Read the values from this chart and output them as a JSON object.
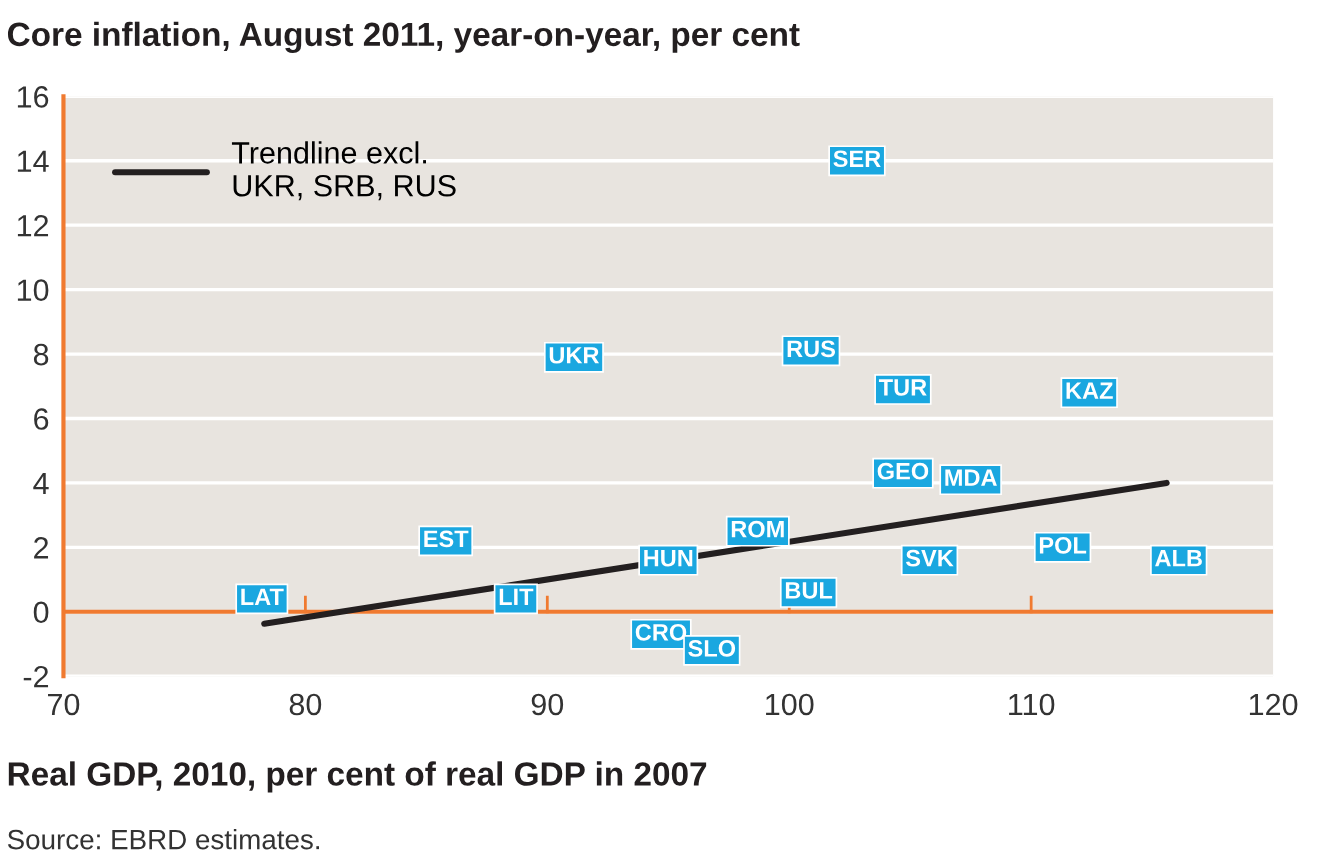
{
  "chart_data": {
    "type": "scatter",
    "title": "Core inflation, August 2011, year-on-year, per cent",
    "xlabel": "Real GDP, 2010, per cent of real GDP in 2007",
    "xlim": [
      70,
      120
    ],
    "xticks": [
      70,
      80,
      90,
      100,
      110,
      120
    ],
    "ylim": [
      -2,
      16
    ],
    "yticks": [
      -2,
      0,
      2,
      4,
      6,
      8,
      10,
      12,
      14,
      16
    ],
    "grid": "y",
    "legend": "top left",
    "ref_lines": [
      {
        "axis": "y",
        "value": 0,
        "color": "#f07a30"
      }
    ],
    "series": [
      {
        "type": "line",
        "name": "Trendline excl.\nUKR, SRB, RUS",
        "color": "#231f20",
        "x": [
          78.3,
          115.6
        ],
        "values": [
          -0.37,
          4.0
        ]
      }
    ],
    "annotations": [
      {
        "text": "LAT",
        "x": 78.2,
        "y": 0.4
      },
      {
        "text": "EST",
        "x": 85.8,
        "y": 2.2
      },
      {
        "text": "UKR",
        "x": 91.1,
        "y": 7.9
      },
      {
        "text": "LIT",
        "x": 88.7,
        "y": 0.4
      },
      {
        "text": "HUN",
        "x": 95.0,
        "y": 1.6
      },
      {
        "text": "CRO",
        "x": 94.7,
        "y": -0.7
      },
      {
        "text": "SLO",
        "x": 96.8,
        "y": -1.2
      },
      {
        "text": "ROM",
        "x": 98.7,
        "y": 2.5
      },
      {
        "text": "BUL",
        "x": 100.8,
        "y": 0.6
      },
      {
        "text": "RUS",
        "x": 100.9,
        "y": 8.1
      },
      {
        "text": "SER",
        "x": 102.8,
        "y": 14.0
      },
      {
        "text": "TUR",
        "x": 104.7,
        "y": 6.9
      },
      {
        "text": "GEO",
        "x": 104.7,
        "y": 4.3
      },
      {
        "text": "MDA",
        "x": 107.5,
        "y": 4.1
      },
      {
        "text": "SVK",
        "x": 105.8,
        "y": 1.6
      },
      {
        "text": "POL",
        "x": 111.3,
        "y": 2.0
      },
      {
        "text": "KAZ",
        "x": 112.4,
        "y": 6.8
      },
      {
        "text": "ALB",
        "x": 116.1,
        "y": 1.6
      },
      "Source: EBRD estimates."
    ]
  }
}
